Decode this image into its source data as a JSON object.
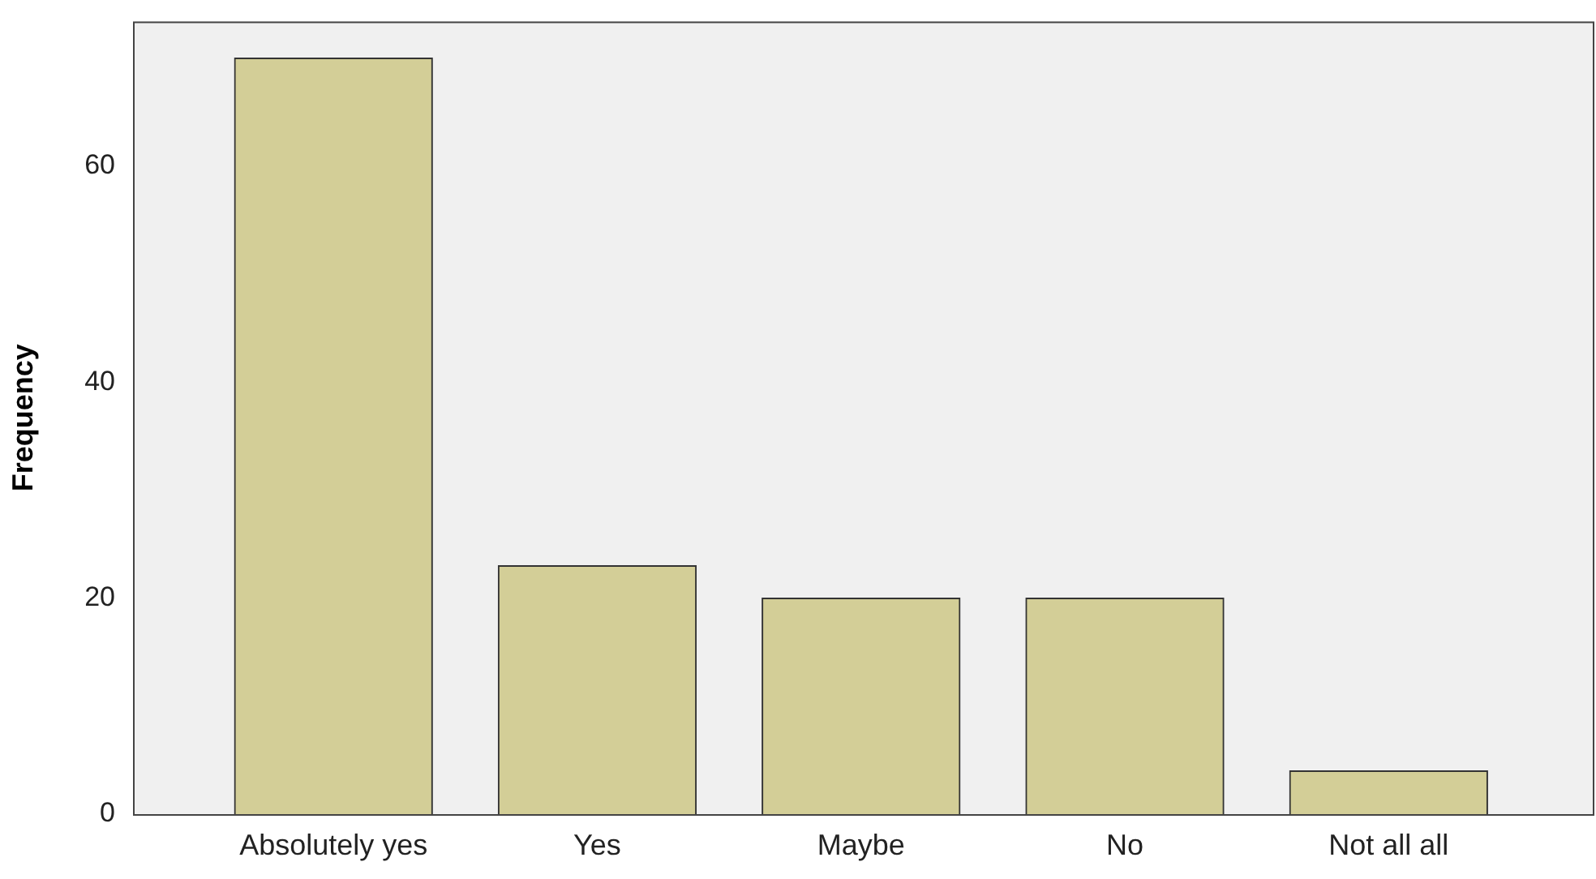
{
  "chart_data": {
    "type": "bar",
    "ylabel": "Frequency",
    "categories": [
      "Absolutely yes",
      "Yes",
      "Maybe",
      "No",
      "Not all all"
    ],
    "values": [
      70,
      23,
      20,
      20,
      4
    ],
    "color": "#d3ce97",
    "ylim": [
      0,
      73.4
    ],
    "yticks": [
      0,
      20,
      40,
      60
    ]
  }
}
